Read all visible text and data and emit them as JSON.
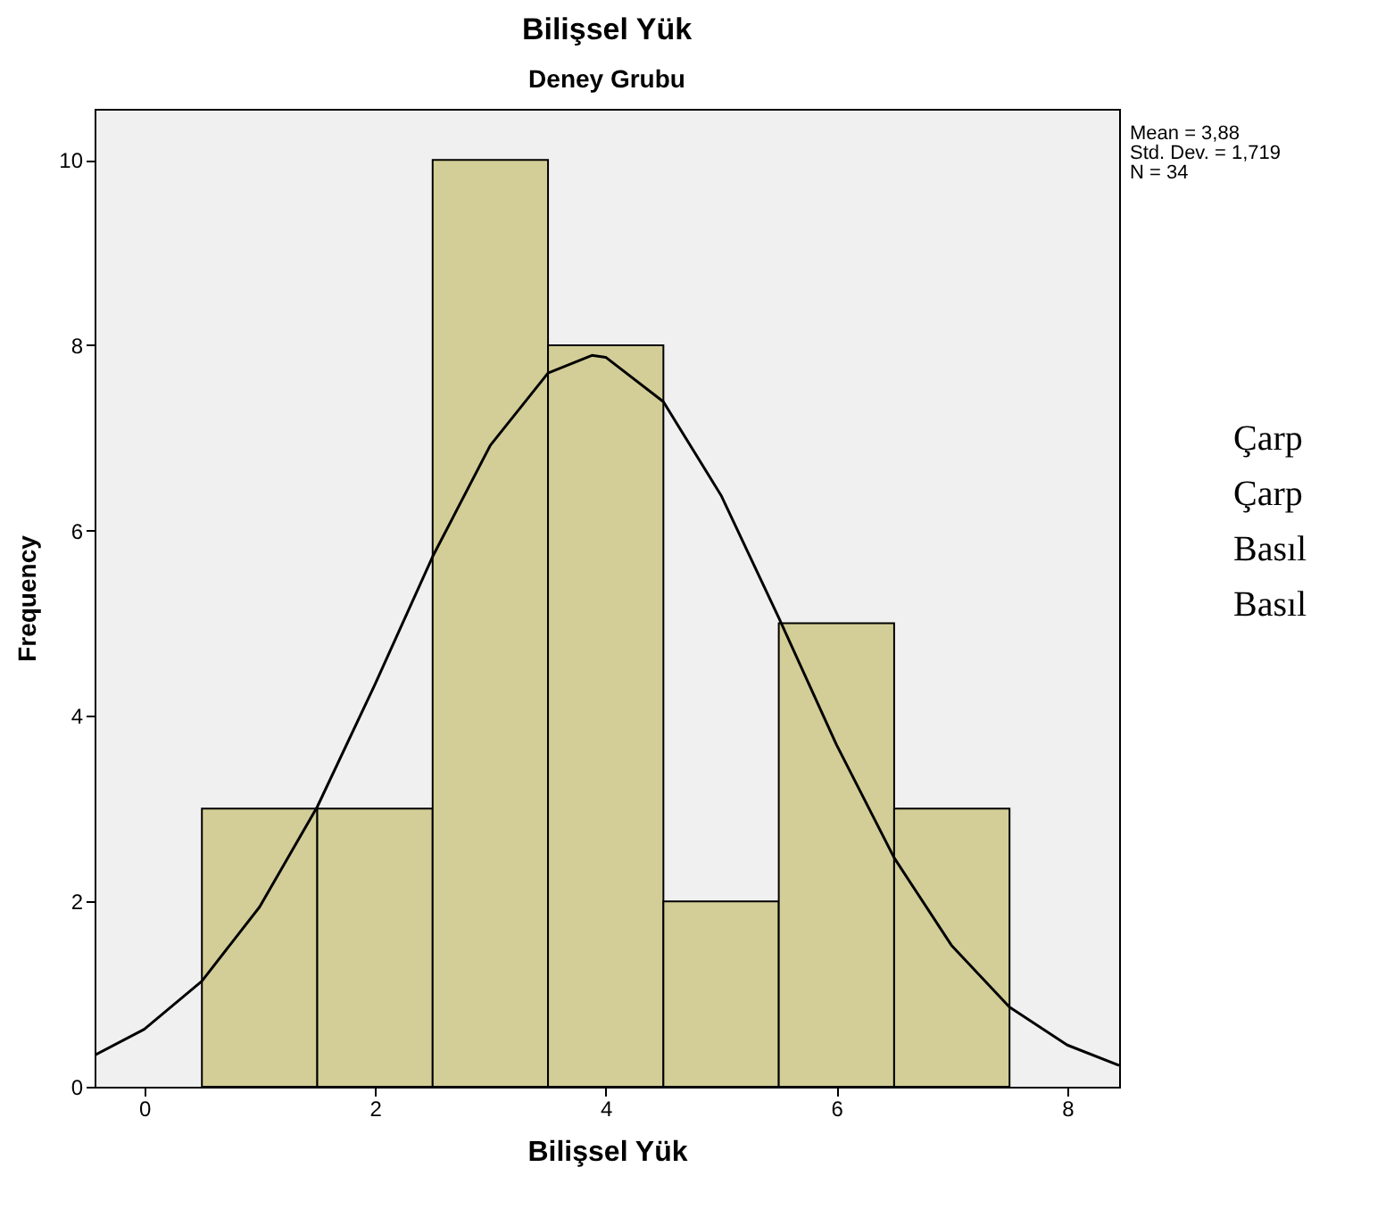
{
  "chart_data": {
    "type": "histogram",
    "title": "Bilişsel Yük",
    "subtitle": "Deney Grubu",
    "xlabel": "Bilişsel Yük",
    "ylabel": "Frequency",
    "bins": [
      0.5,
      1.5,
      2.5,
      3.5,
      4.5,
      5.5,
      6.5,
      7.5
    ],
    "values": [
      3,
      3,
      10,
      8,
      2,
      5,
      3
    ],
    "color": "#d3ce97",
    "series": [
      {
        "type": "line",
        "color": "#000000",
        "x": [
          -0.43,
          0,
          0.5,
          1,
          1.5,
          2,
          2.5,
          3,
          3.5,
          3.88,
          4,
          4.5,
          5,
          5.5,
          6,
          6.5,
          7,
          7.5,
          8,
          8.45
        ],
        "values": [
          0.34,
          0.62,
          1.14,
          1.94,
          3.02,
          4.34,
          5.72,
          6.92,
          7.7,
          7.89,
          7.87,
          7.39,
          6.38,
          5.06,
          3.69,
          2.47,
          1.52,
          0.86,
          0.45,
          0.23
        ]
      }
    ],
    "xlim": [
      -0.43,
      8.45
    ],
    "xticks": [
      0,
      2,
      4,
      6,
      8
    ],
    "ylim": [
      0,
      10.55
    ],
    "yticks": [
      0,
      2,
      4,
      6,
      8,
      10
    ],
    "grid": false,
    "annotations": [
      "Mean = 3,88",
      "Std. Dev. = 1,719",
      "N = 34",
      "Çarp",
      "Çarp",
      "Basıl",
      "Basıl"
    ]
  }
}
